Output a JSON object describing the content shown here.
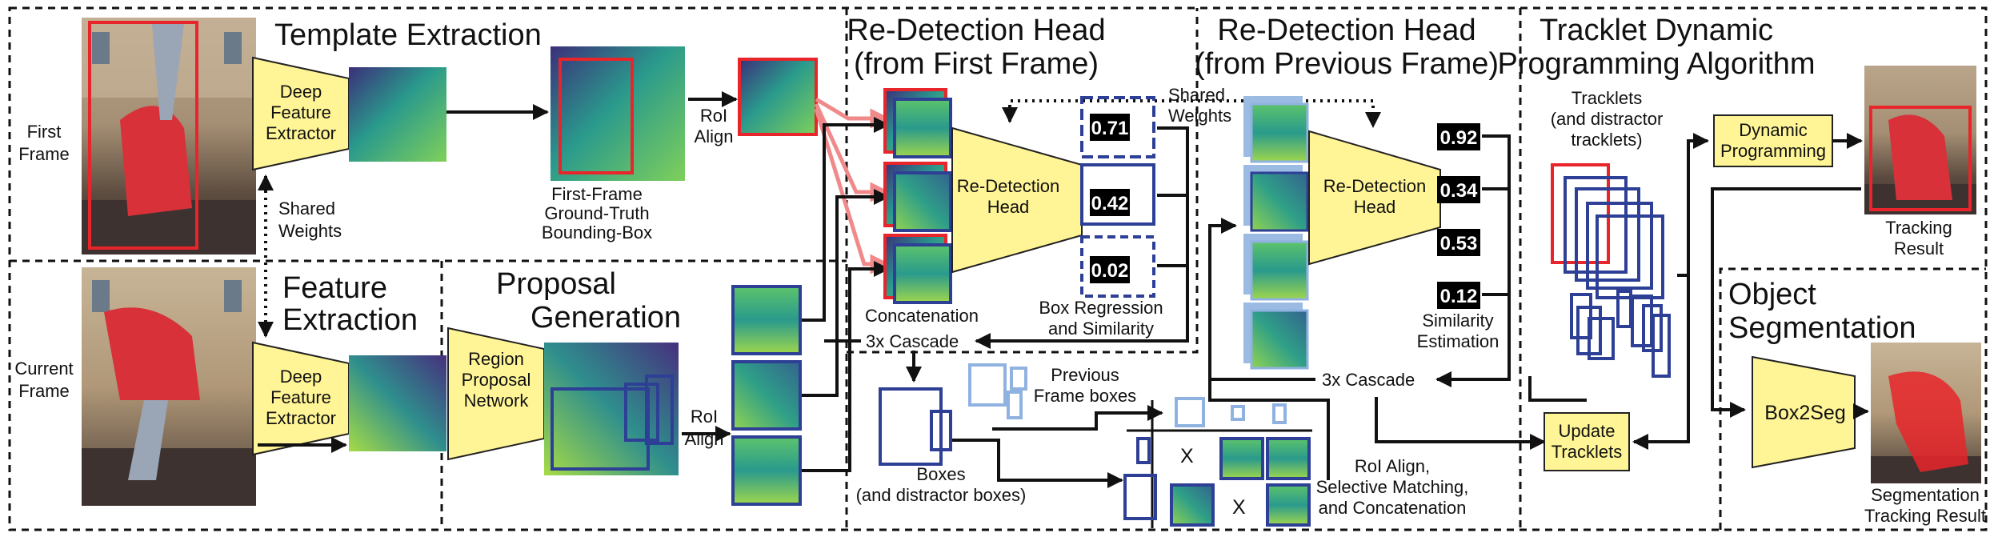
{
  "sections": {
    "template_extraction": "Template Extraction",
    "feature_extraction": [
      "Feature",
      "Extraction"
    ],
    "proposal_generation": [
      "Proposal",
      "Generation"
    ],
    "redetect_first": [
      "Re-Detection Head",
      "(from First Frame)"
    ],
    "redetect_previous": [
      "Re-Detection Head",
      "(from Previous Frame)"
    ],
    "tdpa": [
      "Tracklet Dynamic",
      "Programming Algorithm"
    ],
    "object_segmentation": [
      "Object",
      "Segmentation"
    ]
  },
  "labels": {
    "first_frame": [
      "First",
      "Frame"
    ],
    "current_frame": [
      "Current",
      "Frame"
    ],
    "shared_weights": [
      "Shared",
      "Weights"
    ],
    "deep_feature_extractor": [
      "Deep",
      "Feature",
      "Extractor"
    ],
    "roi_align": [
      "RoI",
      "Align"
    ],
    "first_frame_gt": [
      "First-Frame",
      "Ground-Truth",
      "Bounding-Box"
    ],
    "region_proposal_network": [
      "Region",
      "Proposal",
      "Network"
    ],
    "redetection_head": [
      "Re-Detection",
      "Head"
    ],
    "concatenation": "Concatenation",
    "box_regression": [
      "Box Regression",
      "and Similarity"
    ],
    "cascade": "3x Cascade",
    "boxes": [
      "Boxes",
      "(and distractor boxes)"
    ],
    "previous_frame_boxes": [
      "Previous",
      "Frame boxes"
    ],
    "roi_align_selective": [
      "RoI Align,",
      "Selective Matching,",
      "and Concatenation"
    ],
    "similarity_estimation": [
      "Similarity",
      "Estimation"
    ],
    "tracklets": [
      "Tracklets",
      "(and distractor",
      "tracklets)"
    ],
    "dynamic_programming": [
      "Dynamic",
      "Programming"
    ],
    "update_tracklets": [
      "Update",
      "Tracklets"
    ],
    "tracking_result": [
      "Tracking",
      "Result"
    ],
    "box2seg": "Box2Seg",
    "segmentation_tracking_result": [
      "Segmentation",
      "Tracking Result"
    ],
    "times": "X"
  },
  "scores_first": [
    "0.71",
    "0.42",
    "0.02"
  ],
  "scores_previous": [
    "0.92",
    "0.34",
    "0.53",
    "0.12"
  ],
  "colors": {
    "yellow": "#fff596",
    "box_blue": "#2e3f96",
    "light_blue": "#8fb2e0",
    "red": "#e8252a",
    "feature_dark": "#3b2f7a",
    "feature_mid": "#2a9a8c",
    "feature_light": "#bde24a"
  }
}
